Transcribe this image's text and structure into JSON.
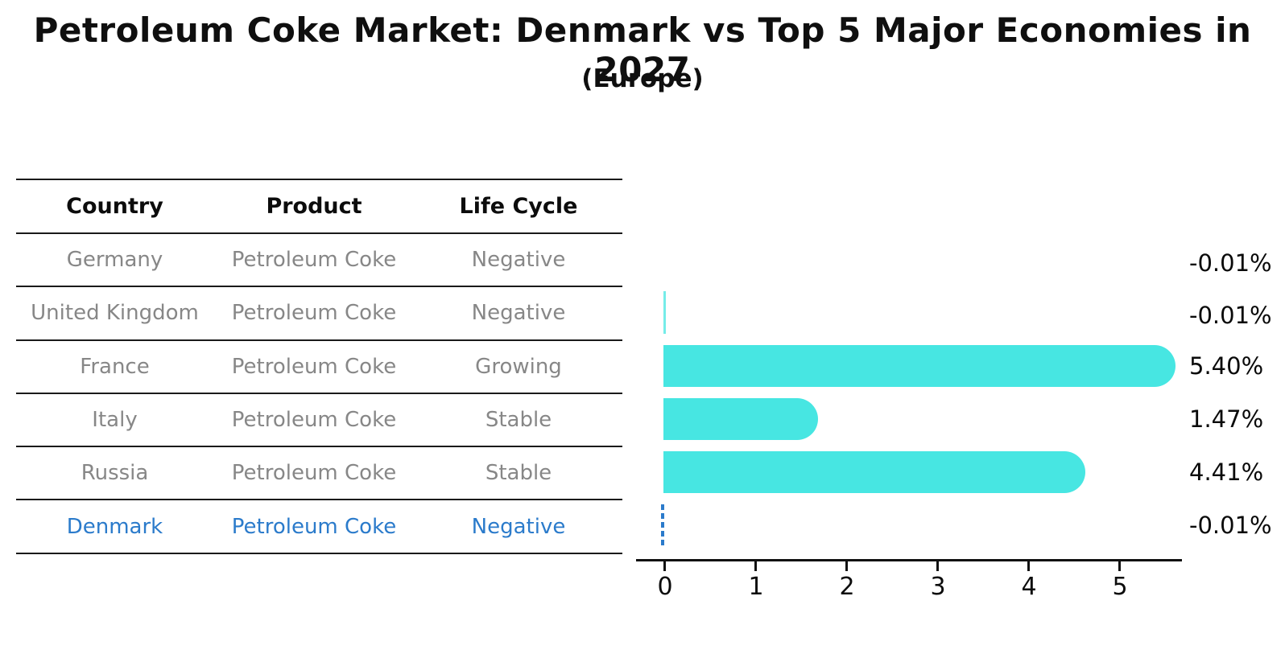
{
  "title": "Petroleum Coke Market: Denmark vs Top 5 Major Economies in 2027",
  "subtitle": "(Europe)",
  "table": {
    "headers": [
      "Country",
      "Product",
      "Life Cycle"
    ],
    "rows": [
      {
        "country": "Germany",
        "product": "Petroleum Coke",
        "life_cycle": "Negative",
        "highlight": false
      },
      {
        "country": "United Kingdom",
        "product": "Petroleum Coke",
        "life_cycle": "Negative",
        "highlight": false
      },
      {
        "country": "France",
        "product": "Petroleum Coke",
        "life_cycle": "Growing",
        "highlight": false
      },
      {
        "country": "Italy",
        "product": "Petroleum Coke",
        "life_cycle": "Stable",
        "highlight": false
      },
      {
        "country": "Russia",
        "product": "Petroleum Coke",
        "life_cycle": "Stable",
        "highlight": false
      },
      {
        "country": "Denmark",
        "product": "Petroleum Coke",
        "life_cycle": "Negative",
        "highlight": true
      }
    ]
  },
  "chart_data": {
    "type": "bar",
    "orientation": "horizontal",
    "title": "Petroleum Coke Market: Denmark vs Top 5 Major Economies in 2027 (Europe)",
    "categories": [
      "Germany",
      "United Kingdom",
      "France",
      "Italy",
      "Russia",
      "Denmark"
    ],
    "values": [
      -0.01,
      -0.01,
      5.4,
      1.47,
      4.41,
      -0.01
    ],
    "value_labels": [
      "-0.01%",
      "-0.01%",
      "5.40%",
      "1.47%",
      "4.41%",
      "-0.01%"
    ],
    "xticks": [
      "0",
      "1",
      "2",
      "3",
      "4",
      "5"
    ],
    "xlim": [
      0,
      5.7
    ],
    "grid": false,
    "legend": false,
    "bar_styles": [
      "none",
      "sliver",
      "solid",
      "solid",
      "solid",
      "dashed"
    ],
    "highlight_country": "Denmark",
    "colors": {
      "bar": "#47E6E2",
      "highlight": "#2B7BCB",
      "gray_text": "#878787",
      "ink": "#0f0f0f"
    }
  }
}
